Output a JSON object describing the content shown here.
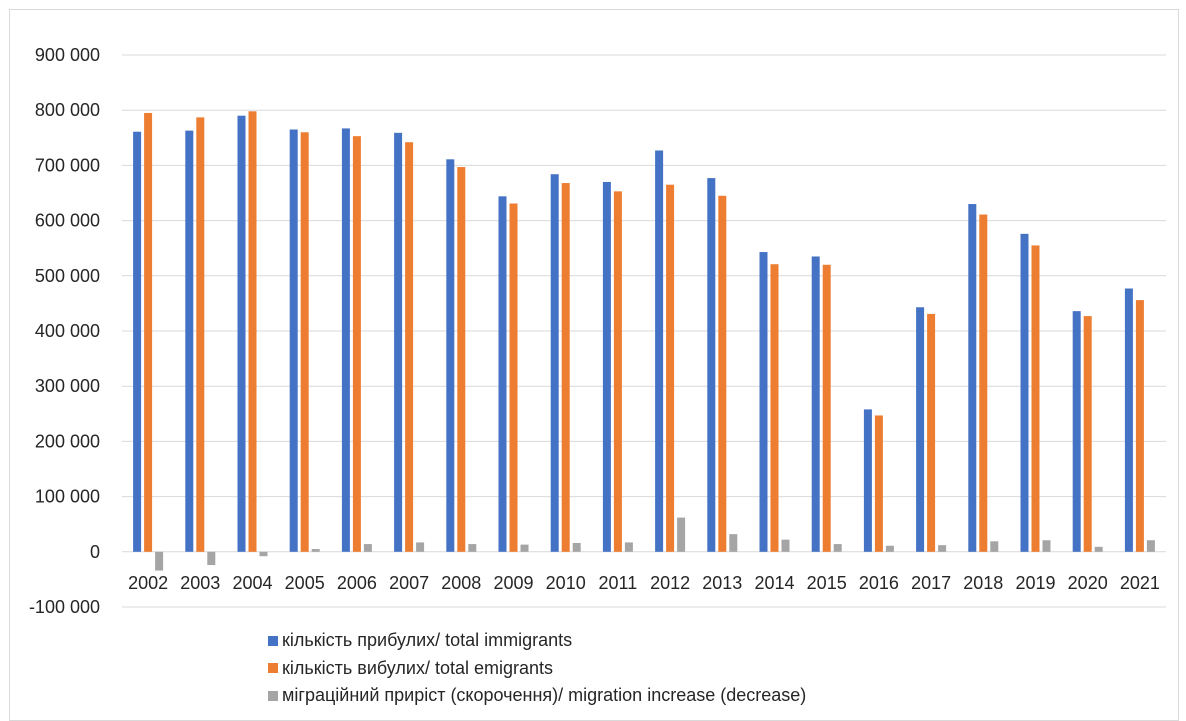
{
  "chart_data": {
    "type": "bar",
    "categories": [
      "2002",
      "2003",
      "2004",
      "2005",
      "2006",
      "2007",
      "2008",
      "2009",
      "2010",
      "2011",
      "2012",
      "2013",
      "2014",
      "2015",
      "2016",
      "2017",
      "2018",
      "2019",
      "2020",
      "2021"
    ],
    "series": [
      {
        "name": "кількість прибулих/ total immigrants",
        "color": "#4472c4",
        "values": [
          761000,
          763000,
          790000,
          765000,
          767000,
          759000,
          711000,
          644000,
          684000,
          670000,
          727000,
          677000,
          543000,
          535000,
          258000,
          443000,
          630000,
          576000,
          436000,
          477000
        ]
      },
      {
        "name": "кількість вибулих/ total emigrants",
        "color": "#ed7d31",
        "values": [
          795000,
          787000,
          798000,
          760000,
          753000,
          742000,
          697000,
          631000,
          668000,
          653000,
          665000,
          645000,
          521000,
          520000,
          247000,
          431000,
          611000,
          555000,
          427000,
          456000
        ]
      },
      {
        "name": "міграційний приріст (скорочення)/ migration increase (decrease)",
        "color": "#a5a5a5",
        "values": [
          -34000,
          -24000,
          -8000,
          5000,
          14000,
          17000,
          14000,
          13000,
          16000,
          17000,
          62000,
          32000,
          22000,
          14000,
          11000,
          12000,
          19000,
          21000,
          9000,
          21000
        ]
      }
    ],
    "y_ticks": [
      "-100 000",
      "0",
      "100 000",
      "200 000",
      "300 000",
      "400 000",
      "500 000",
      "600 000",
      "700 000",
      "800 000",
      "900 000"
    ],
    "ylim": [
      -100000,
      900000
    ],
    "title": "",
    "xlabel": "",
    "ylabel": "",
    "grid": true,
    "legend_position": "bottom"
  }
}
